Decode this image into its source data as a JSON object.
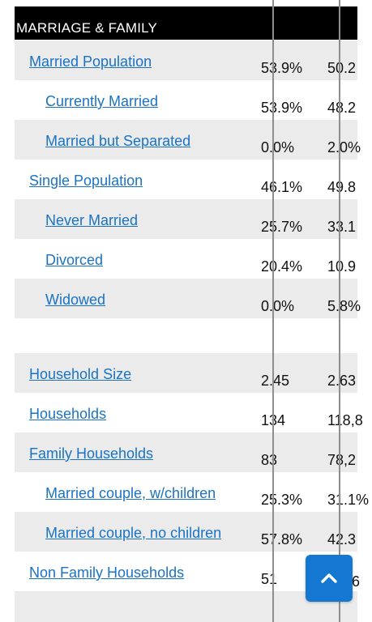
{
  "section": {
    "title": "MARRIAGE & FAMILY"
  },
  "rows": [
    {
      "label": "Married Population",
      "v1": "53.9%",
      "v2": "50.2"
    },
    {
      "label": "Currently Married",
      "v1": "53.9%",
      "v2": "48.2"
    },
    {
      "label": "Married but Separated",
      "v1": "0.0%",
      "v2": "2.0%"
    },
    {
      "label": "Single Population",
      "v1": "46.1%",
      "v2": "49.8"
    },
    {
      "label": "Never Married",
      "v1": "25.7%",
      "v2": "33.1"
    },
    {
      "label": "Divorced",
      "v1": "20.4%",
      "v2": "10.9"
    },
    {
      "label": "Widowed",
      "v1": "0.0%",
      "v2": "5.8%"
    },
    {
      "label": "Household Size",
      "v1": "2.45",
      "v2": "2.63"
    },
    {
      "label": "Households",
      "v1": "134",
      "v2": "118,8"
    },
    {
      "label": "Family Households",
      "v1": "83",
      "v2": "78,2"
    },
    {
      "label": "Married couple, w/children",
      "v1": "25.3%",
      "v2": "31.1%"
    },
    {
      "label": "Married couple, no children",
      "v1": "57.8%",
      "v2": "42.3"
    },
    {
      "label": "Non Family Households",
      "v1": "51",
      "v2": "6"
    }
  ],
  "scroll_top": {
    "icon": "chevron-up-icon",
    "color": "#1477d2"
  },
  "colors": {
    "link": "#1a73c4",
    "header_bg": "#000000",
    "row_shade": "#ebebeb"
  }
}
